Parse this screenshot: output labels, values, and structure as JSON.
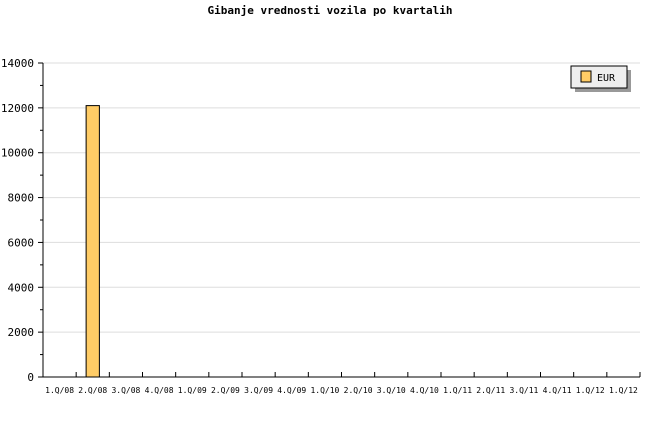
{
  "chart_data": {
    "type": "bar",
    "title": "Gibanje vrednosti vozila po kvartalih",
    "categories": [
      "1.Q/08",
      "2.Q/08",
      "3.Q/08",
      "4.Q/08",
      "1.Q/09",
      "2.Q/09",
      "3.Q/09",
      "4.Q/09",
      "1.Q/10",
      "2.Q/10",
      "3.Q/10",
      "4.Q/10",
      "1.Q/11",
      "2.Q/11",
      "3.Q/11",
      "4.Q/11",
      "1.Q/12",
      "1.Q/12"
    ],
    "series": [
      {
        "name": "EUR",
        "values": [
          0,
          12100,
          0,
          0,
          0,
          0,
          0,
          0,
          0,
          0,
          0,
          0,
          0,
          0,
          0,
          0,
          0,
          0
        ],
        "color": "#ffcc66"
      }
    ],
    "ylim": [
      0,
      14000
    ],
    "yticks": [
      0,
      2000,
      4000,
      6000,
      8000,
      10000,
      12000,
      14000
    ],
    "grid": true,
    "legend": "top-right"
  }
}
